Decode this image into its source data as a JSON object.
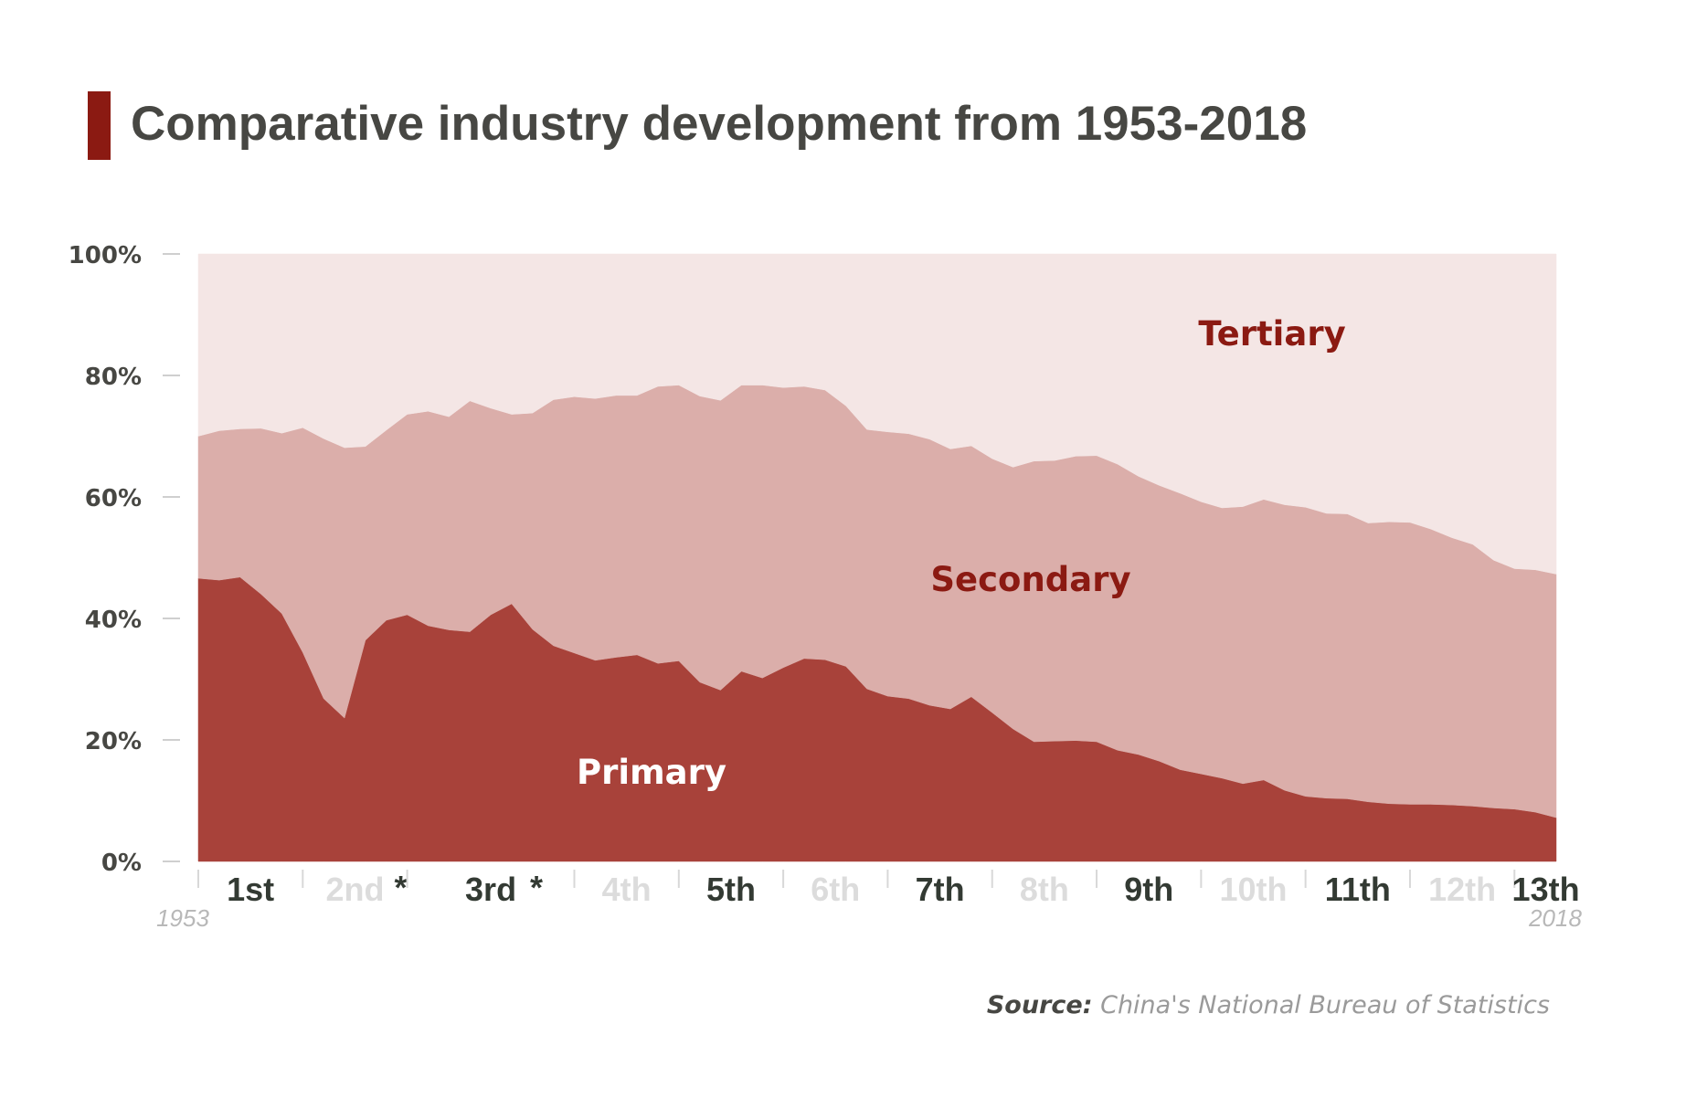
{
  "title": "Comparative industry development from 1953-2018",
  "colors": {
    "primary": "#a8423a",
    "secondary": "#dbaeaa",
    "tertiary": "#f4e6e5",
    "title_bar": "#8b1a12",
    "label_dark": "#8b1a12",
    "label_light": "#ffffff",
    "plan_dark": "#333a33",
    "plan_light": "#dcdcdc"
  },
  "source": {
    "label": "Source:",
    "text": "China's National Bureau of Statistics"
  },
  "chart_data": {
    "type": "area",
    "stacked": true,
    "percent": true,
    "ylim": [
      0,
      100
    ],
    "yticks": [
      {
        "value": 0,
        "label": "0%"
      },
      {
        "value": 20,
        "label": "20%"
      },
      {
        "value": 40,
        "label": "40%"
      },
      {
        "value": 60,
        "label": "60%"
      },
      {
        "value": 80,
        "label": "80%"
      },
      {
        "value": 100,
        "label": "100%"
      }
    ],
    "x_start": 1953,
    "x_end": 2018,
    "x_start_label": "1953",
    "x_end_label": "2018",
    "years": [
      1953,
      1954,
      1955,
      1956,
      1957,
      1958,
      1959,
      1960,
      1961,
      1962,
      1963,
      1964,
      1965,
      1966,
      1967,
      1968,
      1969,
      1970,
      1971,
      1972,
      1973,
      1974,
      1975,
      1976,
      1977,
      1978,
      1979,
      1980,
      1981,
      1982,
      1983,
      1984,
      1985,
      1986,
      1987,
      1988,
      1989,
      1990,
      1991,
      1992,
      1993,
      1994,
      1995,
      1996,
      1997,
      1998,
      1999,
      2000,
      2001,
      2002,
      2003,
      2004,
      2005,
      2006,
      2007,
      2008,
      2009,
      2010,
      2011,
      2012,
      2013,
      2014,
      2015,
      2016,
      2017,
      2018
    ],
    "series": [
      {
        "name": "Primary",
        "values": [
          46.6,
          46.3,
          46.8,
          44.0,
          40.8,
          34.4,
          26.8,
          23.6,
          36.4,
          39.7,
          40.6,
          38.8,
          38.1,
          37.8,
          40.6,
          42.4,
          38.2,
          35.5,
          34.3,
          33.1,
          33.6,
          34.0,
          32.6,
          33.0,
          29.5,
          28.2,
          31.3,
          30.2,
          31.9,
          33.4,
          33.2,
          32.1,
          28.4,
          27.2,
          26.8,
          25.7,
          25.1,
          27.1,
          24.5,
          21.8,
          19.7,
          19.8,
          19.9,
          19.7,
          18.3,
          17.6,
          16.5,
          15.1,
          14.4,
          13.7,
          12.8,
          13.4,
          11.7,
          10.7,
          10.4,
          10.3,
          9.8,
          9.5,
          9.4,
          9.4,
          9.3,
          9.1,
          8.8,
          8.6,
          8.1,
          7.2
        ]
      },
      {
        "name": "Secondary",
        "values": [
          23.4,
          24.6,
          24.4,
          27.3,
          29.7,
          37.0,
          42.8,
          44.5,
          31.9,
          31.3,
          33.0,
          35.3,
          35.1,
          38.0,
          34.0,
          31.2,
          35.6,
          40.5,
          42.2,
          43.1,
          43.1,
          42.7,
          45.6,
          45.4,
          47.1,
          47.7,
          47.1,
          48.2,
          46.1,
          44.8,
          44.4,
          42.9,
          42.7,
          43.5,
          43.6,
          43.8,
          42.8,
          41.3,
          41.8,
          43.1,
          46.2,
          46.2,
          46.8,
          47.1,
          47.1,
          45.8,
          45.4,
          45.5,
          44.8,
          44.5,
          45.6,
          46.2,
          47.0,
          47.6,
          46.9,
          46.9,
          45.9,
          46.4,
          46.4,
          45.3,
          44.0,
          43.1,
          40.8,
          39.6,
          39.9,
          40.1
        ]
      },
      {
        "name": "Tertiary",
        "values": [
          30.0,
          29.1,
          28.8,
          28.7,
          29.5,
          28.6,
          30.4,
          31.9,
          31.7,
          29.0,
          26.4,
          25.9,
          26.8,
          24.2,
          25.4,
          26.4,
          26.2,
          24.0,
          23.5,
          23.8,
          23.3,
          23.3,
          21.8,
          21.6,
          23.4,
          24.1,
          21.6,
          21.6,
          22.0,
          21.8,
          22.4,
          25.0,
          28.9,
          29.3,
          29.6,
          30.5,
          32.1,
          31.6,
          33.7,
          35.1,
          34.1,
          34.0,
          33.3,
          33.2,
          34.6,
          36.6,
          38.1,
          39.4,
          40.8,
          41.8,
          41.6,
          40.4,
          41.3,
          41.7,
          42.7,
          42.8,
          44.3,
          44.1,
          44.2,
          45.3,
          46.7,
          47.8,
          50.4,
          51.8,
          52.0,
          52.7
        ]
      }
    ],
    "series_labels": [
      "Primary",
      "Secondary",
      "Tertiary"
    ],
    "five_year_plans": [
      {
        "label": "1st",
        "start": 1953,
        "end": 1957,
        "dark": true,
        "asterisk": ""
      },
      {
        "label": "2nd",
        "start": 1958,
        "end": 1962,
        "dark": false,
        "asterisk": "*"
      },
      {
        "label": "3rd",
        "start": 1963,
        "end": 1970,
        "dark": true,
        "asterisk": "*"
      },
      {
        "label": "4th",
        "start": 1971,
        "end": 1975,
        "dark": false,
        "asterisk": ""
      },
      {
        "label": "5th",
        "start": 1976,
        "end": 1980,
        "dark": true,
        "asterisk": ""
      },
      {
        "label": "6th",
        "start": 1981,
        "end": 1985,
        "dark": false,
        "asterisk": ""
      },
      {
        "label": "7th",
        "start": 1986,
        "end": 1990,
        "dark": true,
        "asterisk": ""
      },
      {
        "label": "8th",
        "start": 1991,
        "end": 1995,
        "dark": false,
        "asterisk": ""
      },
      {
        "label": "9th",
        "start": 1996,
        "end": 2000,
        "dark": true,
        "asterisk": ""
      },
      {
        "label": "10th",
        "start": 2001,
        "end": 2005,
        "dark": false,
        "asterisk": ""
      },
      {
        "label": "11th",
        "start": 2006,
        "end": 2010,
        "dark": true,
        "asterisk": ""
      },
      {
        "label": "12th",
        "start": 2011,
        "end": 2015,
        "dark": false,
        "asterisk": ""
      },
      {
        "label": "13th",
        "start": 2016,
        "end": 2020,
        "dark": true,
        "asterisk": ""
      }
    ]
  }
}
